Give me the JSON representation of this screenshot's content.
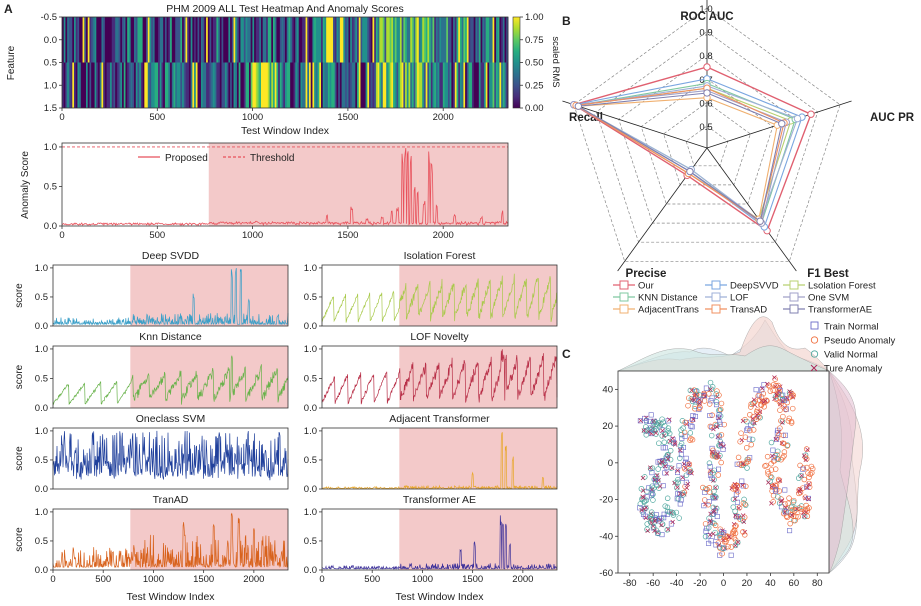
{
  "panel_labels": {
    "a": "A",
    "b": "B",
    "c": "C"
  },
  "colors": {
    "anomaly_region": "#f3c9c9",
    "proposed": "#e8525c",
    "deep_svdd": "#3a9fc8",
    "isolation_forest": "#a8c94a",
    "knn": "#68b24a",
    "lof": "#b83048",
    "ocsvm": "#20409c",
    "adjacent": "#e8a72a",
    "tranad": "#d8621c",
    "transformer_ae": "#3e329a"
  },
  "heatmap": {
    "title": "PHM 2009 ALL Test Heatmap And Anomaly Scores",
    "ylabel": "Feature",
    "xlabel": "Test Window Index",
    "colorbar_label": "scaled RMS",
    "colorbar_ticks": [
      "1.00",
      "0.75",
      "0.50",
      "0.25",
      "0.00"
    ],
    "y_ticks": [
      "-0.5",
      "0.0",
      "0.5",
      "1.0",
      "1.5"
    ],
    "x_ticks": [
      "0",
      "500",
      "1000",
      "1500",
      "2000"
    ],
    "colormap": "viridis"
  },
  "proposed": {
    "ylabel": "Anomaly Score",
    "legend": [
      "Proposed",
      "Threshold"
    ],
    "y_ticks": [
      "0.0",
      "0.5",
      "1.0"
    ],
    "x_ticks": [
      "0",
      "500",
      "1000",
      "1500",
      "2000"
    ]
  },
  "small_axes": {
    "ylabel": "score",
    "xlabel": "Test Window Index",
    "y_ticks": [
      "0.0",
      "0.5",
      "1.0"
    ],
    "x_ticks": [
      "0",
      "500",
      "1000",
      "1500",
      "2000"
    ]
  },
  "models": [
    {
      "key": "deep_svdd",
      "title": "Deep SVDD"
    },
    {
      "key": "isolation_forest",
      "title": "Isolation Forest"
    },
    {
      "key": "knn",
      "title": "Knn Distance"
    },
    {
      "key": "lof",
      "title": "LOF Novelty"
    },
    {
      "key": "ocsvm",
      "title": "Oneclass SVM"
    },
    {
      "key": "adjacent",
      "title": "Adjacent Transformer"
    },
    {
      "key": "tranad",
      "title": "TranAD"
    },
    {
      "key": "transformer_ae",
      "title": "Transformer AE"
    }
  ],
  "radar": {
    "axes": [
      "ROC AUC",
      "AUC PR",
      "F1 Best",
      "Precise",
      "Recall"
    ],
    "ring_labels": [
      "1.0",
      "0.9",
      "0.8",
      "0.7",
      "0.6",
      "0.5"
    ],
    "legend": [
      {
        "label": "Our",
        "color": "#e06070",
        "marker": "square"
      },
      {
        "label": "DeepSVVD",
        "color": "#7aa6e0",
        "marker": "circle"
      },
      {
        "label": "Lsolation Forest",
        "color": "#b8d070",
        "marker": "triangle-up"
      },
      {
        "label": "KNN Distance",
        "color": "#7fc8a0",
        "marker": "triangle-down"
      },
      {
        "label": "LOF",
        "color": "#9fb0d8",
        "marker": "diamond"
      },
      {
        "label": "One SVM",
        "color": "#a0a0c8",
        "marker": "triangle-left"
      },
      {
        "label": "AdjacentTrans",
        "color": "#f0b070",
        "marker": "triangle-right"
      },
      {
        "label": "TransAD",
        "color": "#f09060",
        "marker": "hexagon"
      },
      {
        "label": "TransformerAE",
        "color": "#8080b0",
        "marker": "star"
      }
    ]
  },
  "chart_data": [
    {
      "type": "heatmap",
      "title": "PHM 2009 ALL Test Heatmap And Anomaly Scores",
      "xlabel": "Test Window Index",
      "ylabel": "Feature",
      "xlim": [
        0,
        2340
      ],
      "ylim": [
        -0.5,
        1.5
      ],
      "rows": 2,
      "colorbar": {
        "label": "scaled RMS",
        "range": [
          0,
          1
        ]
      }
    },
    {
      "type": "line",
      "ylabel": "Anomaly Score",
      "xlim": [
        0,
        2340
      ],
      "ylim": [
        0,
        1.05
      ],
      "anomaly_start": 770,
      "series": [
        {
          "name": "Proposed",
          "baseline": 0.03,
          "peaks": [
            [
              1020,
              0.07
            ],
            [
              1190,
              0.06
            ],
            [
              1390,
              0.15
            ],
            [
              1520,
              0.25
            ],
            [
              1600,
              0.1
            ],
            [
              1680,
              0.12
            ],
            [
              1730,
              0.2
            ],
            [
              1760,
              0.25
            ],
            [
              1785,
              1.0
            ],
            [
              1800,
              1.0
            ],
            [
              1815,
              0.95
            ],
            [
              1830,
              1.0
            ],
            [
              1850,
              0.6
            ],
            [
              1865,
              0.45
            ],
            [
              1900,
              0.35
            ],
            [
              1925,
              1.0
            ],
            [
              1940,
              0.85
            ],
            [
              1965,
              0.3
            ],
            [
              2060,
              0.15
            ],
            [
              2200,
              0.12
            ],
            [
              2310,
              0.2
            ]
          ]
        },
        {
          "name": "Threshold",
          "value": 1.0
        }
      ]
    },
    {
      "type": "radar",
      "axes": [
        "ROC AUC",
        "AUC PR",
        "F1 Best",
        "Precise",
        "Recall"
      ],
      "rlim": [
        0.5,
        1.0
      ],
      "series": [
        {
          "name": "Our",
          "values": [
            0.75,
            0.87,
            0.84,
            0.55,
            1.0
          ]
        },
        {
          "name": "DeepSVVD",
          "values": [
            0.7,
            0.83,
            0.82,
            0.53,
            1.0
          ]
        },
        {
          "name": "Lsolation Forest",
          "values": [
            0.66,
            0.78,
            0.78,
            0.54,
            0.99
          ]
        },
        {
          "name": "KNN Distance",
          "values": [
            0.68,
            0.8,
            0.8,
            0.52,
            0.99
          ]
        },
        {
          "name": "LOF",
          "values": [
            0.67,
            0.81,
            0.79,
            0.52,
            0.99
          ]
        },
        {
          "name": "One SVM",
          "values": [
            0.65,
            0.76,
            0.8,
            0.53,
            1.0
          ]
        },
        {
          "name": "AdjacentTrans",
          "values": [
            0.62,
            0.72,
            0.78,
            0.54,
            0.98
          ]
        },
        {
          "name": "TransAD",
          "values": [
            0.66,
            0.75,
            0.79,
            0.54,
            0.99
          ]
        },
        {
          "name": "TransformerAE",
          "values": [
            0.64,
            0.74,
            0.79,
            0.53,
            0.98
          ]
        }
      ]
    },
    {
      "type": "scatter",
      "xlim": [
        -90,
        90
      ],
      "ylim": [
        -60,
        50
      ],
      "x_ticks": [
        -80,
        -60,
        -40,
        -20,
        0,
        20,
        40,
        60,
        80
      ],
      "y_ticks": [
        -60,
        -40,
        -20,
        0,
        20,
        40
      ],
      "series": [
        {
          "name": "Train Normal",
          "color": "#6a6ac8",
          "marker": "square"
        },
        {
          "name": "Pseudo Anomaly",
          "color": "#f07040",
          "marker": "circle"
        },
        {
          "name": "Valid Normal",
          "color": "#50a8a0",
          "marker": "circle"
        },
        {
          "name": "Ture Anomaly",
          "color": "#b02858",
          "marker": "x"
        }
      ],
      "path": [
        [
          -70,
          20
        ],
        [
          -55,
          22
        ],
        [
          -45,
          8
        ],
        [
          -58,
          -8
        ],
        [
          -68,
          -22
        ],
        [
          -60,
          -34
        ],
        [
          -44,
          -28
        ],
        [
          -33,
          -5
        ],
        [
          -32,
          15
        ],
        [
          -25,
          35
        ],
        [
          -12,
          38
        ],
        [
          -4,
          20
        ],
        [
          -8,
          0
        ],
        [
          -12,
          -20
        ],
        [
          -10,
          -40
        ],
        [
          2,
          -46
        ],
        [
          14,
          -32
        ],
        [
          14,
          -10
        ],
        [
          20,
          15
        ],
        [
          30,
          35
        ],
        [
          45,
          40
        ],
        [
          55,
          30
        ],
        [
          48,
          12
        ],
        [
          40,
          -5
        ],
        [
          50,
          -22
        ],
        [
          62,
          -32
        ],
        [
          70,
          -15
        ],
        [
          73,
          5
        ]
      ]
    }
  ]
}
